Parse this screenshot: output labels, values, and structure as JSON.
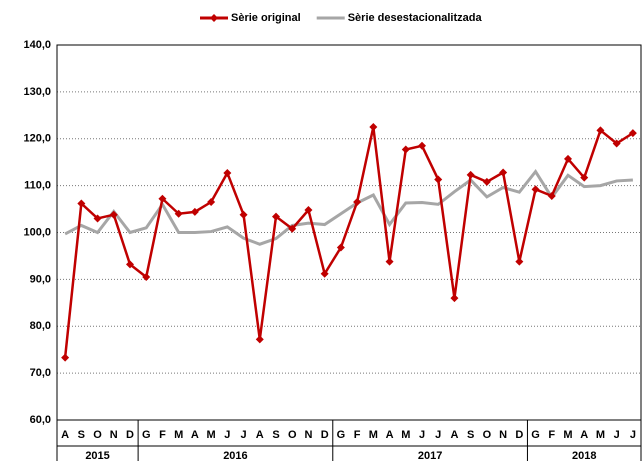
{
  "chart_data": {
    "type": "line",
    "year_groups": [
      {
        "label": "2015",
        "months": [
          "A",
          "S",
          "O",
          "N",
          "D"
        ]
      },
      {
        "label": "2016",
        "months": [
          "G",
          "F",
          "M",
          "A",
          "M",
          "J",
          "J",
          "A",
          "S",
          "O",
          "N",
          "D"
        ]
      },
      {
        "label": "2017",
        "months": [
          "G",
          "F",
          "M",
          "A",
          "M",
          "J",
          "J",
          "A",
          "S",
          "O",
          "N",
          "D"
        ]
      },
      {
        "label": "2018",
        "months": [
          "G",
          "F",
          "M",
          "A",
          "M",
          "J",
          "J"
        ]
      }
    ],
    "series": [
      {
        "name": "Sèrie original",
        "color": "#c00000",
        "marker": "diamond",
        "values": [
          73.3,
          106.2,
          103,
          103.8,
          93.2,
          90.5,
          107.2,
          104,
          104.4,
          106.5,
          112.7,
          103.8,
          77.2,
          103.4,
          100.8,
          104.8,
          91.2,
          96.8,
          106.5,
          122.5,
          93.8,
          117.7,
          118.5,
          111.3,
          86,
          112.3,
          110.8,
          112.8,
          93.8,
          109.2,
          107.8,
          115.7,
          111.7,
          121.8,
          119,
          121.2
        ]
      },
      {
        "name": "Sèrie desestacionalitzada",
        "color": "#a6a6a6",
        "marker": "none",
        "values": [
          99.7,
          101.5,
          100,
          104.5,
          100,
          101,
          106,
          100,
          100,
          100.2,
          101.2,
          98.8,
          97.5,
          98.7,
          101.5,
          102,
          101.7,
          104,
          106.3,
          108,
          101.7,
          106.3,
          106.4,
          106,
          108.7,
          111.2,
          107.6,
          109.6,
          108.6,
          113,
          107.5,
          112.2,
          109.8,
          110,
          111,
          111.2
        ]
      }
    ],
    "ylim": [
      60,
      140
    ],
    "yticks": [
      {
        "value": 60,
        "label": "60,0"
      },
      {
        "value": 70,
        "label": "70,0"
      },
      {
        "value": 80,
        "label": "80,0"
      },
      {
        "value": 90,
        "label": "90,0"
      },
      {
        "value": 100,
        "label": "100,0"
      },
      {
        "value": 110,
        "label": "110,0"
      },
      {
        "value": 120,
        "label": "120,0"
      },
      {
        "value": 130,
        "label": "130,0"
      },
      {
        "value": 140,
        "label": "140,0"
      }
    ],
    "grid": true
  }
}
